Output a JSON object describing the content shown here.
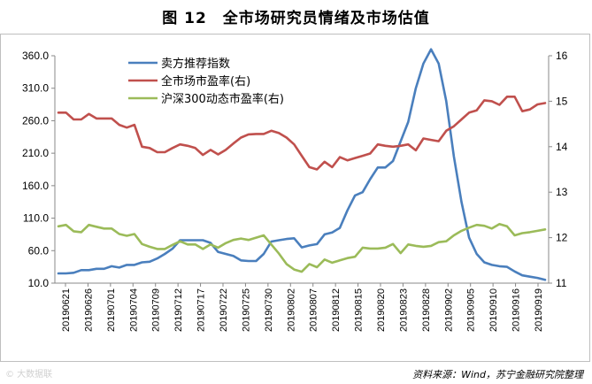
{
  "title": "图 12　全市场研究员情绪及市场估值",
  "source": "资料来源：Wind，苏宁金融研究院整理",
  "watermark": "© 大数据联",
  "chart_data": {
    "type": "line",
    "left_axis": {
      "min": 10,
      "max": 360,
      "ticks": [
        "10.0",
        "60.0",
        "110.0",
        "160.0",
        "210.0",
        "260.0",
        "310.0",
        "360.0"
      ]
    },
    "right_axis": {
      "min": 11,
      "max": 16,
      "ticks": [
        "11",
        "12",
        "13",
        "14",
        "15",
        "16"
      ]
    },
    "tick_labels": [
      "20190621",
      "20190626",
      "20190701",
      "20190704",
      "20190709",
      "20190712",
      "20190717",
      "20190722",
      "20190725",
      "20190730",
      "20190802",
      "20190807",
      "20190812",
      "20190815",
      "20190820",
      "20190823",
      "20190828",
      "20190902",
      "20190905",
      "20190910",
      "20190916",
      "20190919"
    ],
    "colors": {
      "sell": "#4a7fbd",
      "market_pe": "#c0504d",
      "hs300_pe": "#9bbb59"
    },
    "series": [
      {
        "name": "卖方推荐指数",
        "axis": "left",
        "color": "#4a7fbd",
        "values": [
          25,
          25,
          26,
          30,
          30,
          32,
          32,
          36,
          34,
          38,
          38,
          42,
          43,
          48,
          55,
          63,
          76,
          76,
          76,
          76,
          72,
          58,
          55,
          52,
          45,
          44,
          44,
          55,
          74,
          76,
          78,
          79,
          65,
          68,
          70,
          85,
          88,
          95,
          122,
          145,
          150,
          170,
          188,
          188,
          198,
          228,
          258,
          310,
          348,
          370,
          348,
          290,
          205,
          135,
          80,
          55,
          42,
          38,
          36,
          35,
          28,
          22,
          20,
          18,
          15
        ],
        "hide_value": 0
      },
      {
        "name": "全市场市盈率(右)",
        "axis": "right",
        "color": "#c0504d",
        "values": [
          14.75,
          14.75,
          14.6,
          14.6,
          14.72,
          14.62,
          14.62,
          14.62,
          14.48,
          14.42,
          14.48,
          14.0,
          13.97,
          13.88,
          13.88,
          13.97,
          14.05,
          14.02,
          13.97,
          13.82,
          13.93,
          13.83,
          13.93,
          14.07,
          14.2,
          14.27,
          14.28,
          14.28,
          14.35,
          14.3,
          14.2,
          14.05,
          13.8,
          13.55,
          13.5,
          13.67,
          13.55,
          13.77,
          13.7,
          13.75,
          13.8,
          13.85,
          14.05,
          14.02,
          14.0,
          14.02,
          14.05,
          13.92,
          14.18,
          14.15,
          14.12,
          14.35,
          14.45,
          14.6,
          14.75,
          14.8,
          15.02,
          15.0,
          14.92,
          15.1,
          15.1,
          14.78,
          14.82,
          14.93,
          14.96
        ]
      },
      {
        "name": "沪深300动态市盈率(右)",
        "axis": "right",
        "color": "#9bbb59",
        "values": [
          12.25,
          12.28,
          12.14,
          12.12,
          12.28,
          12.24,
          12.2,
          12.2,
          12.08,
          12.04,
          12.08,
          11.86,
          11.8,
          11.75,
          11.75,
          11.84,
          11.92,
          11.85,
          11.85,
          11.75,
          11.85,
          11.78,
          11.88,
          11.95,
          11.98,
          11.95,
          12.0,
          12.05,
          11.85,
          11.65,
          11.42,
          11.3,
          11.25,
          11.42,
          11.35,
          11.52,
          11.45,
          11.5,
          11.55,
          11.58,
          11.78,
          11.76,
          11.76,
          11.78,
          11.86,
          11.66,
          11.85,
          11.82,
          11.8,
          11.82,
          11.9,
          11.92,
          12.05,
          12.15,
          12.22,
          12.28,
          12.26,
          12.2,
          12.3,
          12.25,
          12.05,
          12.1,
          12.12,
          12.15,
          12.18
        ]
      }
    ],
    "legend": [
      {
        "label": "卖方推荐指数",
        "color": "#4a7fbd"
      },
      {
        "label": "全市场市盈率(右)",
        "color": "#c0504d"
      },
      {
        "label": "沪深300动态市盈率(右)",
        "color": "#9bbb59"
      }
    ],
    "legend_position": "top-center"
  }
}
